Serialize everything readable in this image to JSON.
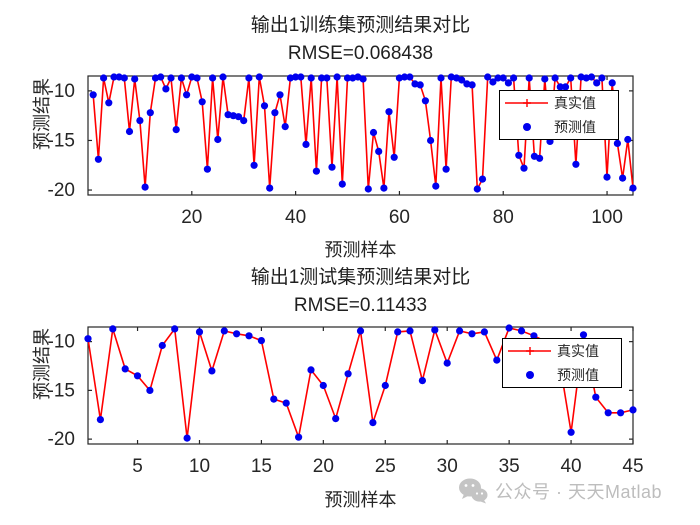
{
  "figure": {
    "watermark": {
      "text": "公众号 · 天天Matlab",
      "icon": "wechat-icon",
      "color": "#c4c4c4"
    }
  },
  "chart_data": [
    {
      "id": "train",
      "type": "line",
      "title": "输出1训练集预测结果对比",
      "subtitle": "RMSE=0.068438",
      "xlabel": "预测样本",
      "ylabel": "预测结果",
      "xlim": [
        0,
        105
      ],
      "ylim": [
        -20.5,
        -8.5
      ],
      "xticks": [
        20,
        40,
        60,
        80,
        100
      ],
      "yticks": [
        -10,
        -15,
        -20
      ],
      "x_start": 1,
      "grid": false,
      "axis_color": "#262626",
      "legend_position": "northeast",
      "series": [
        {
          "name": "真实值",
          "type": "line+plus",
          "color": "#ff0000",
          "values": [
            -10.4,
            -16.9,
            -8.7,
            -11.2,
            -8.6,
            -8.6,
            -8.7,
            -14.1,
            -8.8,
            -13.0,
            -19.7,
            -12.2,
            -8.7,
            -8.6,
            -9.8,
            -8.7,
            -13.9,
            -8.7,
            -10.4,
            -8.6,
            -8.7,
            -11.1,
            -17.9,
            -8.7,
            -14.9,
            -8.6,
            -12.4,
            -12.5,
            -12.6,
            -13.0,
            -8.7,
            -17.5,
            -8.6,
            -11.5,
            -19.8,
            -12.2,
            -10.4,
            -13.6,
            -8.7,
            -8.6,
            -8.6,
            -15.4,
            -8.7,
            -18.1,
            -8.7,
            -8.7,
            -17.7,
            -8.6,
            -19.4,
            -8.7,
            -8.7,
            -8.6,
            -8.8,
            -19.9,
            -14.2,
            -16.1,
            -19.8,
            -12.1,
            -16.7,
            -8.7,
            -8.6,
            -8.6,
            -9.3,
            -9.4,
            -11.0,
            -15.0,
            -19.6,
            -8.7,
            -17.9,
            -8.6,
            -8.7,
            -8.9,
            -9.3,
            -9.4,
            -19.9,
            -18.9,
            -8.6,
            -9.1,
            -8.7,
            -8.7,
            -9.2,
            -8.7,
            -16.5,
            -17.8,
            -8.7,
            -16.6,
            -16.8,
            -8.8,
            -15.1,
            -8.7,
            -9.6,
            -9.6,
            -8.7,
            -17.4,
            -8.6,
            -8.7,
            -8.6,
            -9.2,
            -8.7,
            -18.7,
            -9.2,
            -15.3,
            -18.8,
            -14.9,
            -19.8
          ]
        },
        {
          "name": "预测值",
          "type": "dots",
          "color": "#0000ee",
          "values": [
            -10.4,
            -16.9,
            -8.7,
            -11.2,
            -8.6,
            -8.6,
            -8.7,
            -14.1,
            -8.8,
            -13.0,
            -19.7,
            -12.2,
            -8.7,
            -8.6,
            -9.8,
            -8.7,
            -13.9,
            -8.7,
            -10.4,
            -8.6,
            -8.7,
            -11.1,
            -17.9,
            -8.7,
            -14.9,
            -8.6,
            -12.4,
            -12.5,
            -12.6,
            -13.0,
            -8.7,
            -17.5,
            -8.6,
            -11.5,
            -19.8,
            -12.2,
            -10.4,
            -13.6,
            -8.7,
            -8.6,
            -8.6,
            -15.4,
            -8.7,
            -18.1,
            -8.7,
            -8.7,
            -17.7,
            -8.6,
            -19.4,
            -8.7,
            -8.7,
            -8.6,
            -8.8,
            -19.9,
            -14.2,
            -16.1,
            -19.8,
            -12.1,
            -16.7,
            -8.7,
            -8.6,
            -8.6,
            -9.3,
            -9.4,
            -11.0,
            -15.0,
            -19.6,
            -8.7,
            -17.9,
            -8.6,
            -8.7,
            -8.9,
            -9.3,
            -9.4,
            -19.9,
            -18.9,
            -8.6,
            -9.1,
            -8.7,
            -8.7,
            -9.2,
            -8.7,
            -16.5,
            -17.8,
            -8.7,
            -16.6,
            -16.8,
            -8.8,
            -15.1,
            -8.7,
            -9.6,
            -9.6,
            -8.7,
            -17.4,
            -8.6,
            -8.7,
            -8.6,
            -9.2,
            -8.7,
            -18.7,
            -9.2,
            -15.3,
            -18.8,
            -14.9,
            -19.8
          ]
        }
      ]
    },
    {
      "id": "test",
      "type": "line",
      "title": "输出1测试集预测结果对比",
      "subtitle": "RMSE=0.11433",
      "xlabel": "预测样本",
      "ylabel": "预测结果",
      "xlim": [
        1,
        45
      ],
      "ylim": [
        -20.5,
        -8.5
      ],
      "xticks": [
        5,
        10,
        15,
        20,
        25,
        30,
        35,
        40,
        45
      ],
      "yticks": [
        -10,
        -15,
        -20
      ],
      "x_start": 1,
      "grid": false,
      "axis_color": "#262626",
      "legend_position": "northeast",
      "series": [
        {
          "name": "真实值",
          "type": "line+plus",
          "color": "#ff0000",
          "values": [
            -9.7,
            -18.0,
            -8.7,
            -12.8,
            -13.5,
            -15.0,
            -10.4,
            -8.7,
            -19.9,
            -9.0,
            -13.0,
            -8.9,
            -9.2,
            -9.4,
            -9.9,
            -15.9,
            -16.3,
            -19.8,
            -12.9,
            -14.5,
            -17.9,
            -13.3,
            -8.9,
            -18.3,
            -14.5,
            -9.0,
            -8.9,
            -14.0,
            -8.8,
            -12.2,
            -8.9,
            -9.2,
            -9.0,
            -11.9,
            -8.6,
            -8.9,
            -9.4,
            -10.0,
            -11.5,
            -19.3,
            -9.3,
            -15.7,
            -17.3,
            -17.3,
            -17.0
          ]
        },
        {
          "name": "预测值",
          "type": "dots",
          "color": "#0000ee",
          "values": [
            -9.7,
            -18.0,
            -8.7,
            -12.8,
            -13.5,
            -15.0,
            -10.4,
            -8.7,
            -19.9,
            -9.0,
            -13.0,
            -8.9,
            -9.2,
            -9.4,
            -9.9,
            -15.9,
            -16.3,
            -19.8,
            -12.9,
            -14.5,
            -17.9,
            -13.3,
            -8.9,
            -18.3,
            -14.5,
            -9.0,
            -8.9,
            -14.0,
            -8.8,
            -12.2,
            -8.9,
            -9.2,
            -9.0,
            -11.9,
            -8.6,
            -8.9,
            -9.4,
            -10.0,
            -11.5,
            -19.3,
            -9.3,
            -15.7,
            -17.3,
            -17.3,
            -17.0
          ]
        }
      ]
    }
  ]
}
